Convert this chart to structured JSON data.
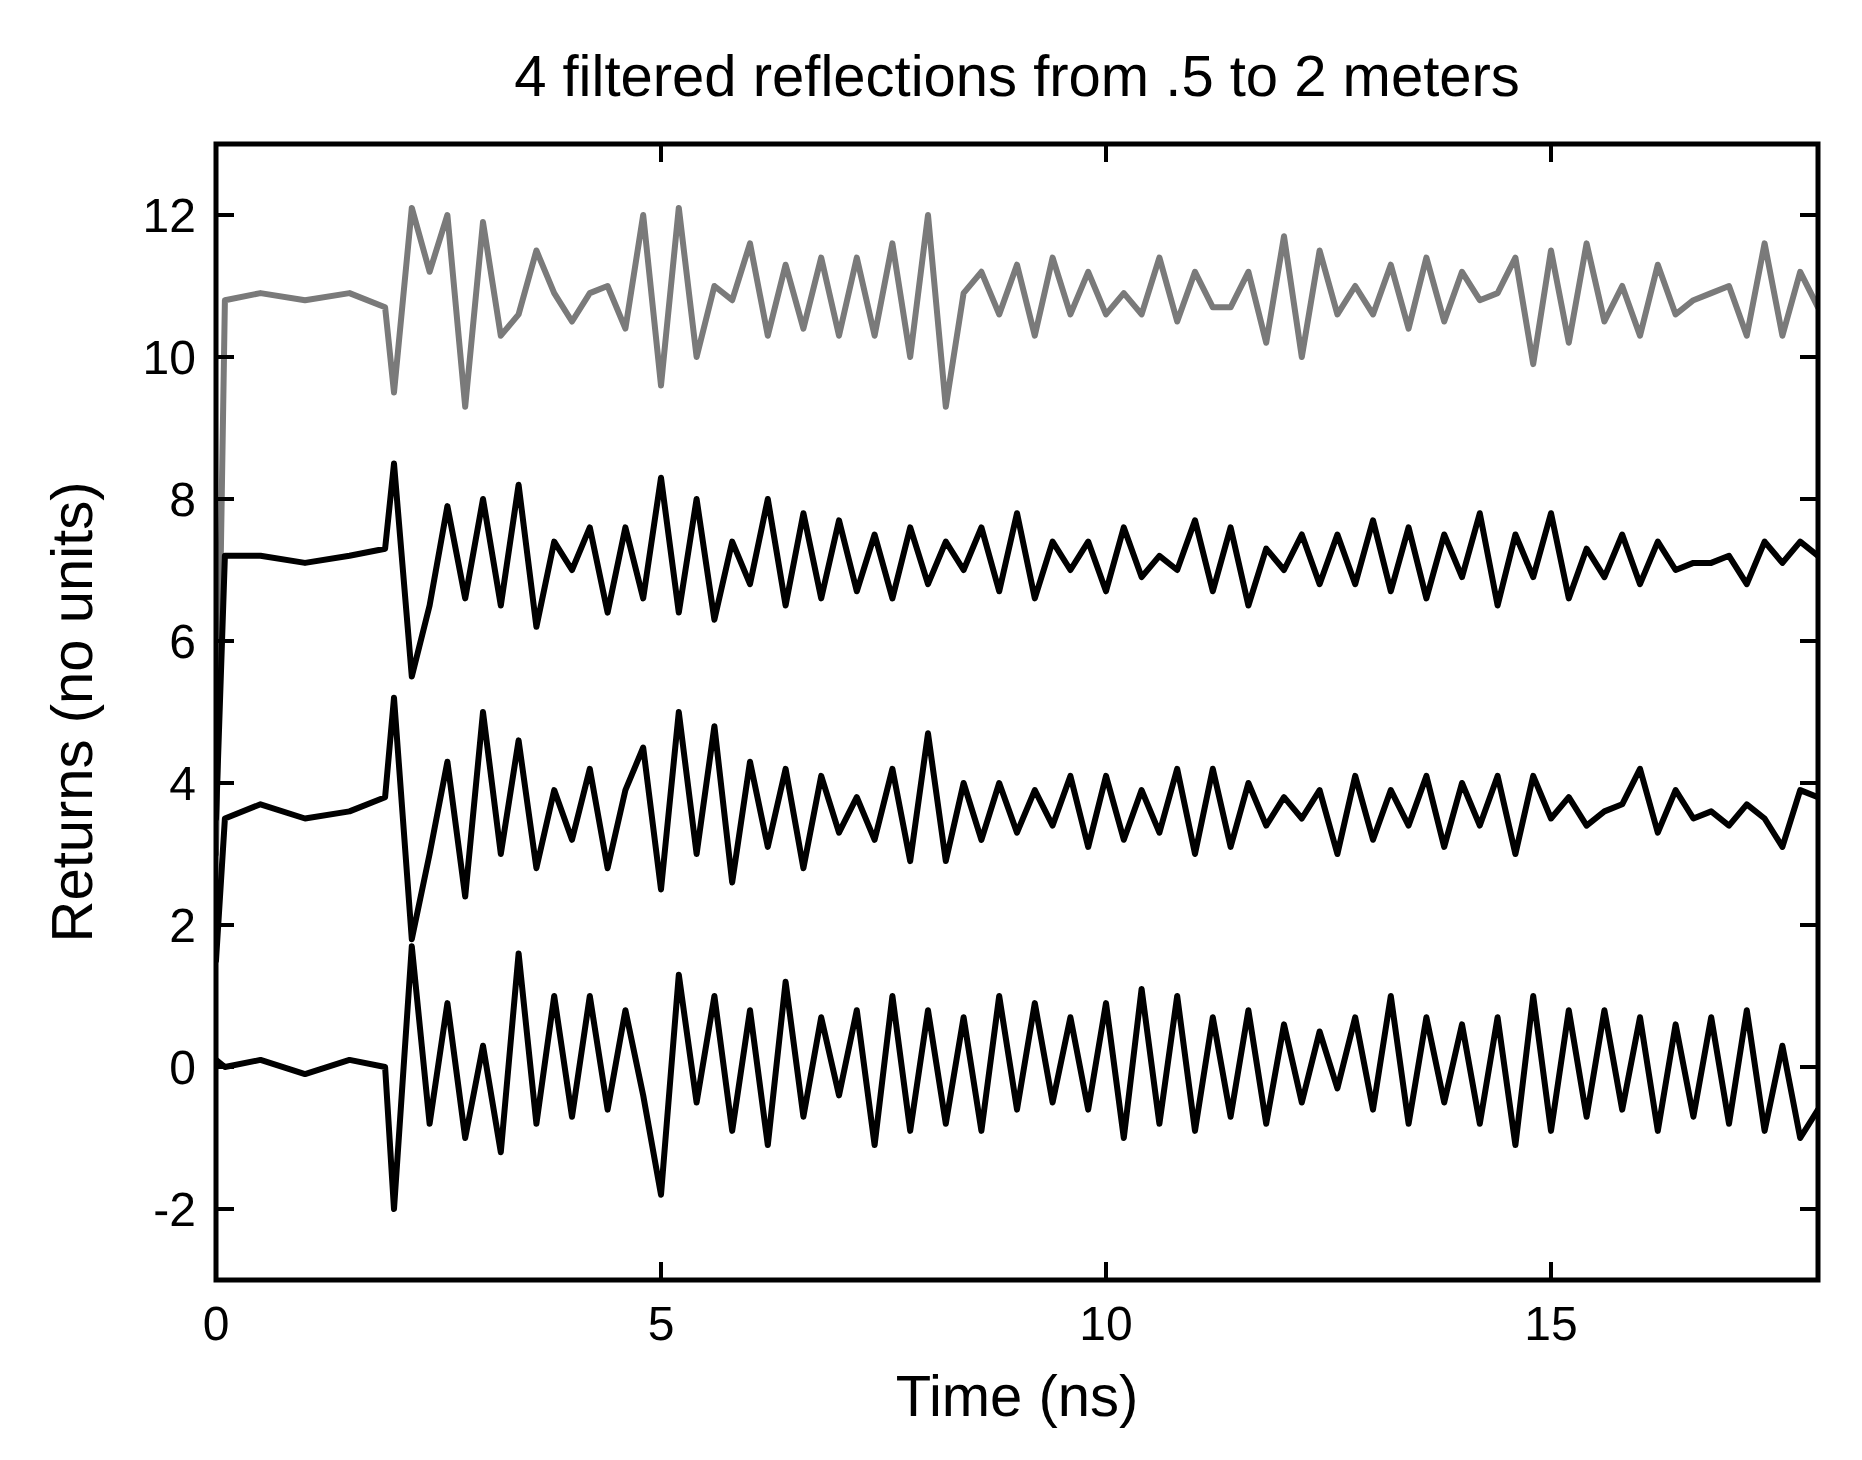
{
  "chart_data": {
    "type": "line",
    "title": "4 filtered reflections from .5 to 2 meters",
    "xlabel": "Time (ns)",
    "ylabel": "Returns (no units)",
    "xlim": [
      0,
      18
    ],
    "ylim": [
      -3,
      13
    ],
    "xticks": [
      0,
      5,
      10,
      15
    ],
    "yticks": [
      -2,
      0,
      2,
      4,
      6,
      8,
      10,
      12
    ],
    "grid": false,
    "marker": "none",
    "line_style": "solid",
    "x": [
      0,
      0.1,
      0.5,
      1,
      1.5,
      1.9,
      2,
      2.2,
      2.4,
      2.6,
      2.8,
      3,
      3.2,
      3.4,
      3.6,
      3.8,
      4,
      4.2,
      4.4,
      4.6,
      4.8,
      5,
      5.2,
      5.4,
      5.6,
      5.8,
      6,
      6.2,
      6.4,
      6.6,
      6.8,
      7,
      7.2,
      7.4,
      7.6,
      7.8,
      8,
      8.2,
      8.4,
      8.6,
      8.8,
      9,
      9.2,
      9.4,
      9.6,
      9.8,
      10,
      10.2,
      10.4,
      10.6,
      10.8,
      11,
      11.2,
      11.4,
      11.6,
      11.8,
      12,
      12.2,
      12.4,
      12.6,
      12.8,
      13,
      13.2,
      13.4,
      13.6,
      13.8,
      14,
      14.2,
      14.4,
      14.6,
      14.8,
      15,
      15.2,
      15.4,
      15.6,
      15.8,
      16,
      16.2,
      16.4,
      16.6,
      16.8,
      17,
      17.2,
      17.4,
      17.6,
      17.8,
      18
    ],
    "series": [
      {
        "color": "#7a7a7a",
        "values": [
          3,
          10.8,
          10.9,
          10.8,
          10.9,
          10.7,
          9.5,
          12.1,
          11.2,
          12.0,
          9.3,
          11.9,
          10.3,
          10.6,
          11.5,
          10.9,
          10.5,
          10.9,
          11.0,
          10.4,
          12.0,
          9.6,
          12.1,
          10.0,
          11.0,
          10.8,
          11.6,
          10.3,
          11.3,
          10.4,
          11.4,
          10.3,
          11.4,
          10.3,
          11.6,
          10.0,
          12.0,
          9.3,
          10.9,
          11.2,
          10.6,
          11.3,
          10.3,
          11.4,
          10.6,
          11.2,
          10.6,
          10.9,
          10.6,
          11.4,
          10.5,
          11.2,
          10.7,
          10.7,
          11.2,
          10.2,
          11.7,
          10.0,
          11.5,
          10.6,
          11.0,
          10.6,
          11.3,
          10.4,
          11.4,
          10.5,
          11.2,
          10.8,
          10.9,
          11.4,
          9.9,
          11.5,
          10.2,
          11.6,
          10.5,
          11.0,
          10.3,
          11.3,
          10.6,
          10.8,
          10.9,
          11.0,
          10.3,
          11.6,
          10.3,
          11.2,
          10.7
        ]
      },
      {
        "color": "#000000",
        "values": [
          3.5,
          7.2,
          7.2,
          7.1,
          7.2,
          7.3,
          8.5,
          5.5,
          6.5,
          7.9,
          6.6,
          8.0,
          6.5,
          8.2,
          6.2,
          7.4,
          7.0,
          7.6,
          6.4,
          7.6,
          6.6,
          8.3,
          6.4,
          8.0,
          6.3,
          7.4,
          6.8,
          8.0,
          6.5,
          7.8,
          6.6,
          7.7,
          6.7,
          7.5,
          6.6,
          7.6,
          6.8,
          7.4,
          7.0,
          7.6,
          6.7,
          7.8,
          6.6,
          7.4,
          7.0,
          7.4,
          6.7,
          7.6,
          6.9,
          7.2,
          7.0,
          7.7,
          6.7,
          7.6,
          6.5,
          7.3,
          7.0,
          7.5,
          6.8,
          7.5,
          6.8,
          7.7,
          6.7,
          7.6,
          6.6,
          7.5,
          6.9,
          7.8,
          6.5,
          7.5,
          6.9,
          7.8,
          6.6,
          7.3,
          6.9,
          7.5,
          6.8,
          7.4,
          7.0,
          7.1,
          7.1,
          7.2,
          6.8,
          7.4,
          7.1,
          7.4,
          7.2
        ]
      },
      {
        "color": "#000000",
        "values": [
          1.5,
          3.5,
          3.7,
          3.5,
          3.6,
          3.8,
          5.2,
          1.8,
          3.0,
          4.3,
          2.4,
          5.0,
          3.0,
          4.6,
          2.8,
          3.9,
          3.2,
          4.2,
          2.8,
          3.9,
          4.5,
          2.5,
          5.0,
          3.0,
          4.8,
          2.6,
          4.3,
          3.1,
          4.2,
          2.8,
          4.1,
          3.3,
          3.8,
          3.2,
          4.2,
          2.9,
          4.7,
          2.9,
          4.0,
          3.2,
          4.0,
          3.3,
          3.9,
          3.4,
          4.1,
          3.1,
          4.1,
          3.2,
          3.9,
          3.3,
          4.2,
          3.0,
          4.2,
          3.1,
          4.0,
          3.4,
          3.8,
          3.5,
          3.9,
          3.0,
          4.1,
          3.2,
          3.9,
          3.4,
          4.1,
          3.1,
          4.0,
          3.4,
          4.1,
          3.0,
          4.1,
          3.5,
          3.8,
          3.4,
          3.6,
          3.7,
          4.2,
          3.3,
          3.9,
          3.5,
          3.6,
          3.4,
          3.7,
          3.5,
          3.1,
          3.9,
          3.8
        ]
      },
      {
        "color": "#000000",
        "values": [
          0.1,
          0.0,
          0.1,
          -0.1,
          0.1,
          0.0,
          -2.0,
          1.7,
          -0.8,
          0.9,
          -1.0,
          0.3,
          -1.2,
          1.6,
          -0.8,
          1.0,
          -0.7,
          1.0,
          -0.6,
          0.8,
          -0.4,
          -1.8,
          1.3,
          -0.5,
          1.0,
          -0.9,
          0.8,
          -1.1,
          1.2,
          -0.7,
          0.7,
          -0.4,
          0.8,
          -1.1,
          1.0,
          -0.9,
          0.8,
          -0.8,
          0.7,
          -0.9,
          1.0,
          -0.6,
          0.9,
          -0.5,
          0.7,
          -0.6,
          0.9,
          -1.0,
          1.1,
          -0.8,
          1.0,
          -0.9,
          0.7,
          -0.7,
          0.8,
          -0.8,
          0.6,
          -0.5,
          0.5,
          -0.3,
          0.7,
          -0.6,
          1.0,
          -0.8,
          0.7,
          -0.5,
          0.6,
          -0.8,
          0.7,
          -1.1,
          1.0,
          -0.9,
          0.8,
          -0.7,
          0.8,
          -0.6,
          0.7,
          -0.9,
          0.6,
          -0.7,
          0.7,
          -0.8,
          0.8,
          -0.9,
          0.3,
          -1.0,
          -0.6
        ]
      }
    ]
  }
}
